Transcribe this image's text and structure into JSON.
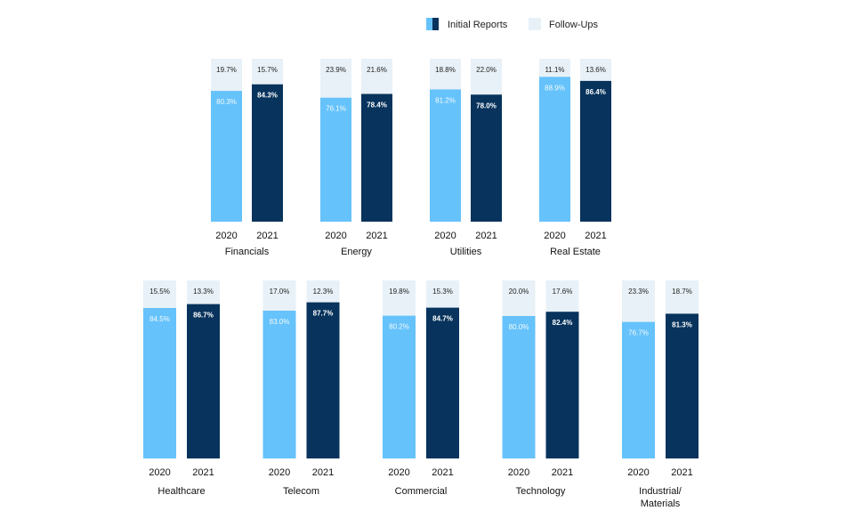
{
  "legend": {
    "initial_label": "Initial Reports",
    "followup_label": "Follow-Ups"
  },
  "colors": {
    "initial_2020": "#66c2fa",
    "initial_2021": "#07335c",
    "followup": "#e8f1f7",
    "legend_initial_2020": "#66c2fa",
    "legend_initial_2021": "#07335c",
    "legend_followup": "#e8f1f7",
    "text_on_light": "#222222",
    "text_on_dark": "#ffffff"
  },
  "chart_data": {
    "type": "bar",
    "stacked": true,
    "normalized_percent": true,
    "years": [
      "2020",
      "2021"
    ],
    "series": [
      "Initial Reports",
      "Follow-Ups"
    ],
    "groups": [
      {
        "name": "Financials",
        "bars": [
          {
            "year": "2020",
            "initial": 80.3,
            "followup": 19.7,
            "initial_label": "80.3%",
            "followup_label": "19.7%"
          },
          {
            "year": "2021",
            "initial": 84.3,
            "followup": 15.7,
            "initial_label": "84.3%",
            "followup_label": "15.7%"
          }
        ]
      },
      {
        "name": "Energy",
        "bars": [
          {
            "year": "2020",
            "initial": 76.1,
            "followup": 23.9,
            "initial_label": "76.1%",
            "followup_label": "23.9%"
          },
          {
            "year": "2021",
            "initial": 78.4,
            "followup": 21.6,
            "initial_label": "78.4%",
            "followup_label": "21.6%"
          }
        ]
      },
      {
        "name": "Utilities",
        "bars": [
          {
            "year": "2020",
            "initial": 81.2,
            "followup": 18.8,
            "initial_label": "81.2%",
            "followup_label": "18.8%"
          },
          {
            "year": "2021",
            "initial": 78.0,
            "followup": 22.0,
            "initial_label": "78.0%",
            "followup_label": "22.0%"
          }
        ]
      },
      {
        "name": "Real Estate",
        "bars": [
          {
            "year": "2020",
            "initial": 88.9,
            "followup": 11.1,
            "initial_label": "88.9%",
            "followup_label": "11.1%"
          },
          {
            "year": "2021",
            "initial": 86.4,
            "followup": 13.6,
            "initial_label": "86.4%",
            "followup_label": "13.6%"
          }
        ]
      },
      {
        "name": "Healthcare",
        "bars": [
          {
            "year": "2020",
            "initial": 84.5,
            "followup": 15.5,
            "initial_label": "84.5%",
            "followup_label": "15.5%"
          },
          {
            "year": "2021",
            "initial": 86.7,
            "followup": 13.3,
            "initial_label": "86.7%",
            "followup_label": "13.3%"
          }
        ]
      },
      {
        "name": "Telecom",
        "bars": [
          {
            "year": "2020",
            "initial": 83.0,
            "followup": 17.0,
            "initial_label": "83.0%",
            "followup_label": "17.0%"
          },
          {
            "year": "2021",
            "initial": 87.7,
            "followup": 12.3,
            "initial_label": "87.7%",
            "followup_label": "12.3%"
          }
        ]
      },
      {
        "name": "Commercial",
        "bars": [
          {
            "year": "2020",
            "initial": 80.2,
            "followup": 19.8,
            "initial_label": "80.2%",
            "followup_label": "19.8%"
          },
          {
            "year": "2021",
            "initial": 84.7,
            "followup": 15.3,
            "initial_label": "84.7%",
            "followup_label": "15.3%"
          }
        ]
      },
      {
        "name": "Technology",
        "bars": [
          {
            "year": "2020",
            "initial": 80.0,
            "followup": 20.0,
            "initial_label": "80.0%",
            "followup_label": "20.0%"
          },
          {
            "year": "2021",
            "initial": 82.4,
            "followup": 17.6,
            "initial_label": "82.4%",
            "followup_label": "17.6%"
          }
        ]
      },
      {
        "name": "Industrial/\nMaterials",
        "bars": [
          {
            "year": "2020",
            "initial": 76.7,
            "followup": 23.3,
            "initial_label": "76.7%",
            "followup_label": "23.3%"
          },
          {
            "year": "2021",
            "initial": 81.3,
            "followup": 18.7,
            "initial_label": "81.3%",
            "followup_label": "18.7%"
          }
        ]
      }
    ]
  }
}
